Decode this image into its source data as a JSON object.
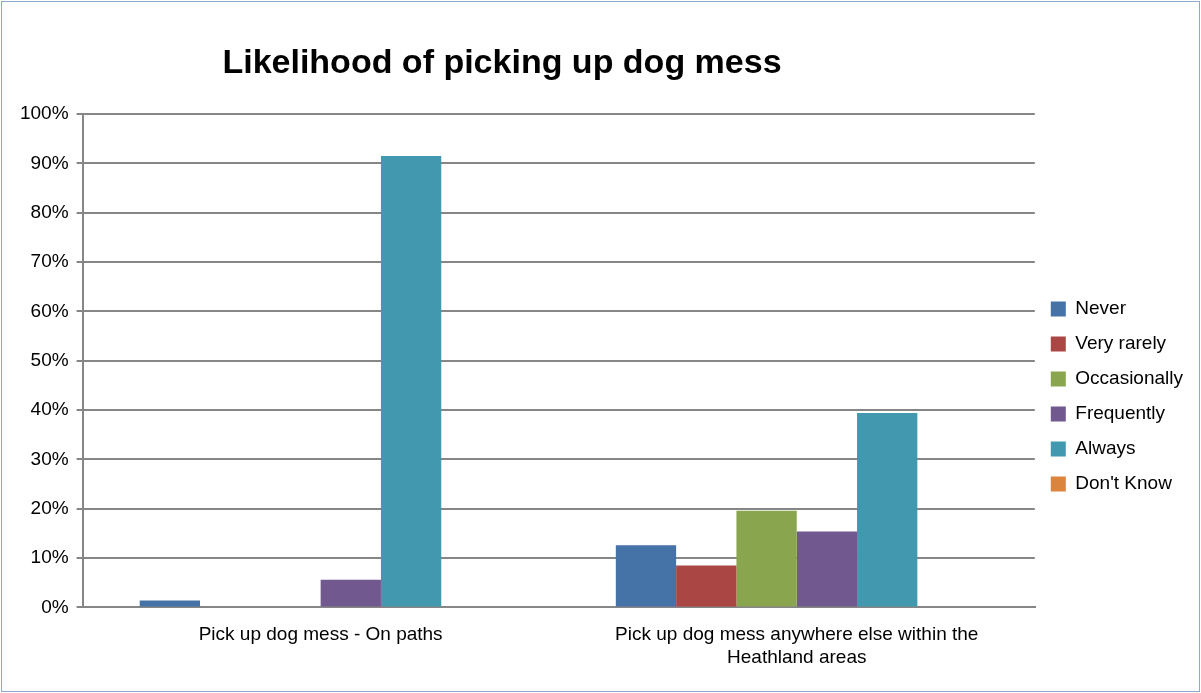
{
  "chart_data": {
    "type": "bar",
    "title": "Likelihood of picking up dog mess",
    "categories": [
      "Pick up dog mess - On paths",
      "Pick up dog mess anywhere else within the Heathland areas"
    ],
    "series": [
      {
        "name": "Never",
        "color": "#4572a7",
        "values": [
          1.4,
          12.6
        ]
      },
      {
        "name": "Very rarely",
        "color": "#aa4643",
        "values": [
          0,
          8.5
        ]
      },
      {
        "name": "Occasionally",
        "color": "#89a54e",
        "values": [
          0,
          19.6
        ]
      },
      {
        "name": "Frequently",
        "color": "#71588f",
        "values": [
          5.6,
          15.4
        ]
      },
      {
        "name": "Always",
        "color": "#4198af",
        "values": [
          91.5,
          39.4
        ]
      },
      {
        "name": "Don't Know",
        "color": "#db843d",
        "values": [
          0,
          0
        ]
      }
    ],
    "ylim": [
      0,
      100
    ],
    "yticks": [
      {
        "value": 0,
        "label": "0%"
      },
      {
        "value": 10,
        "label": "10%"
      },
      {
        "value": 20,
        "label": "20%"
      },
      {
        "value": 30,
        "label": "30%"
      },
      {
        "value": 40,
        "label": "40%"
      },
      {
        "value": 50,
        "label": "50%"
      },
      {
        "value": 60,
        "label": "60%"
      },
      {
        "value": 70,
        "label": "70%"
      },
      {
        "value": 80,
        "label": "80%"
      },
      {
        "value": 90,
        "label": "90%"
      },
      {
        "value": 100,
        "label": "100%"
      }
    ],
    "grid": "y",
    "legend": "right"
  }
}
